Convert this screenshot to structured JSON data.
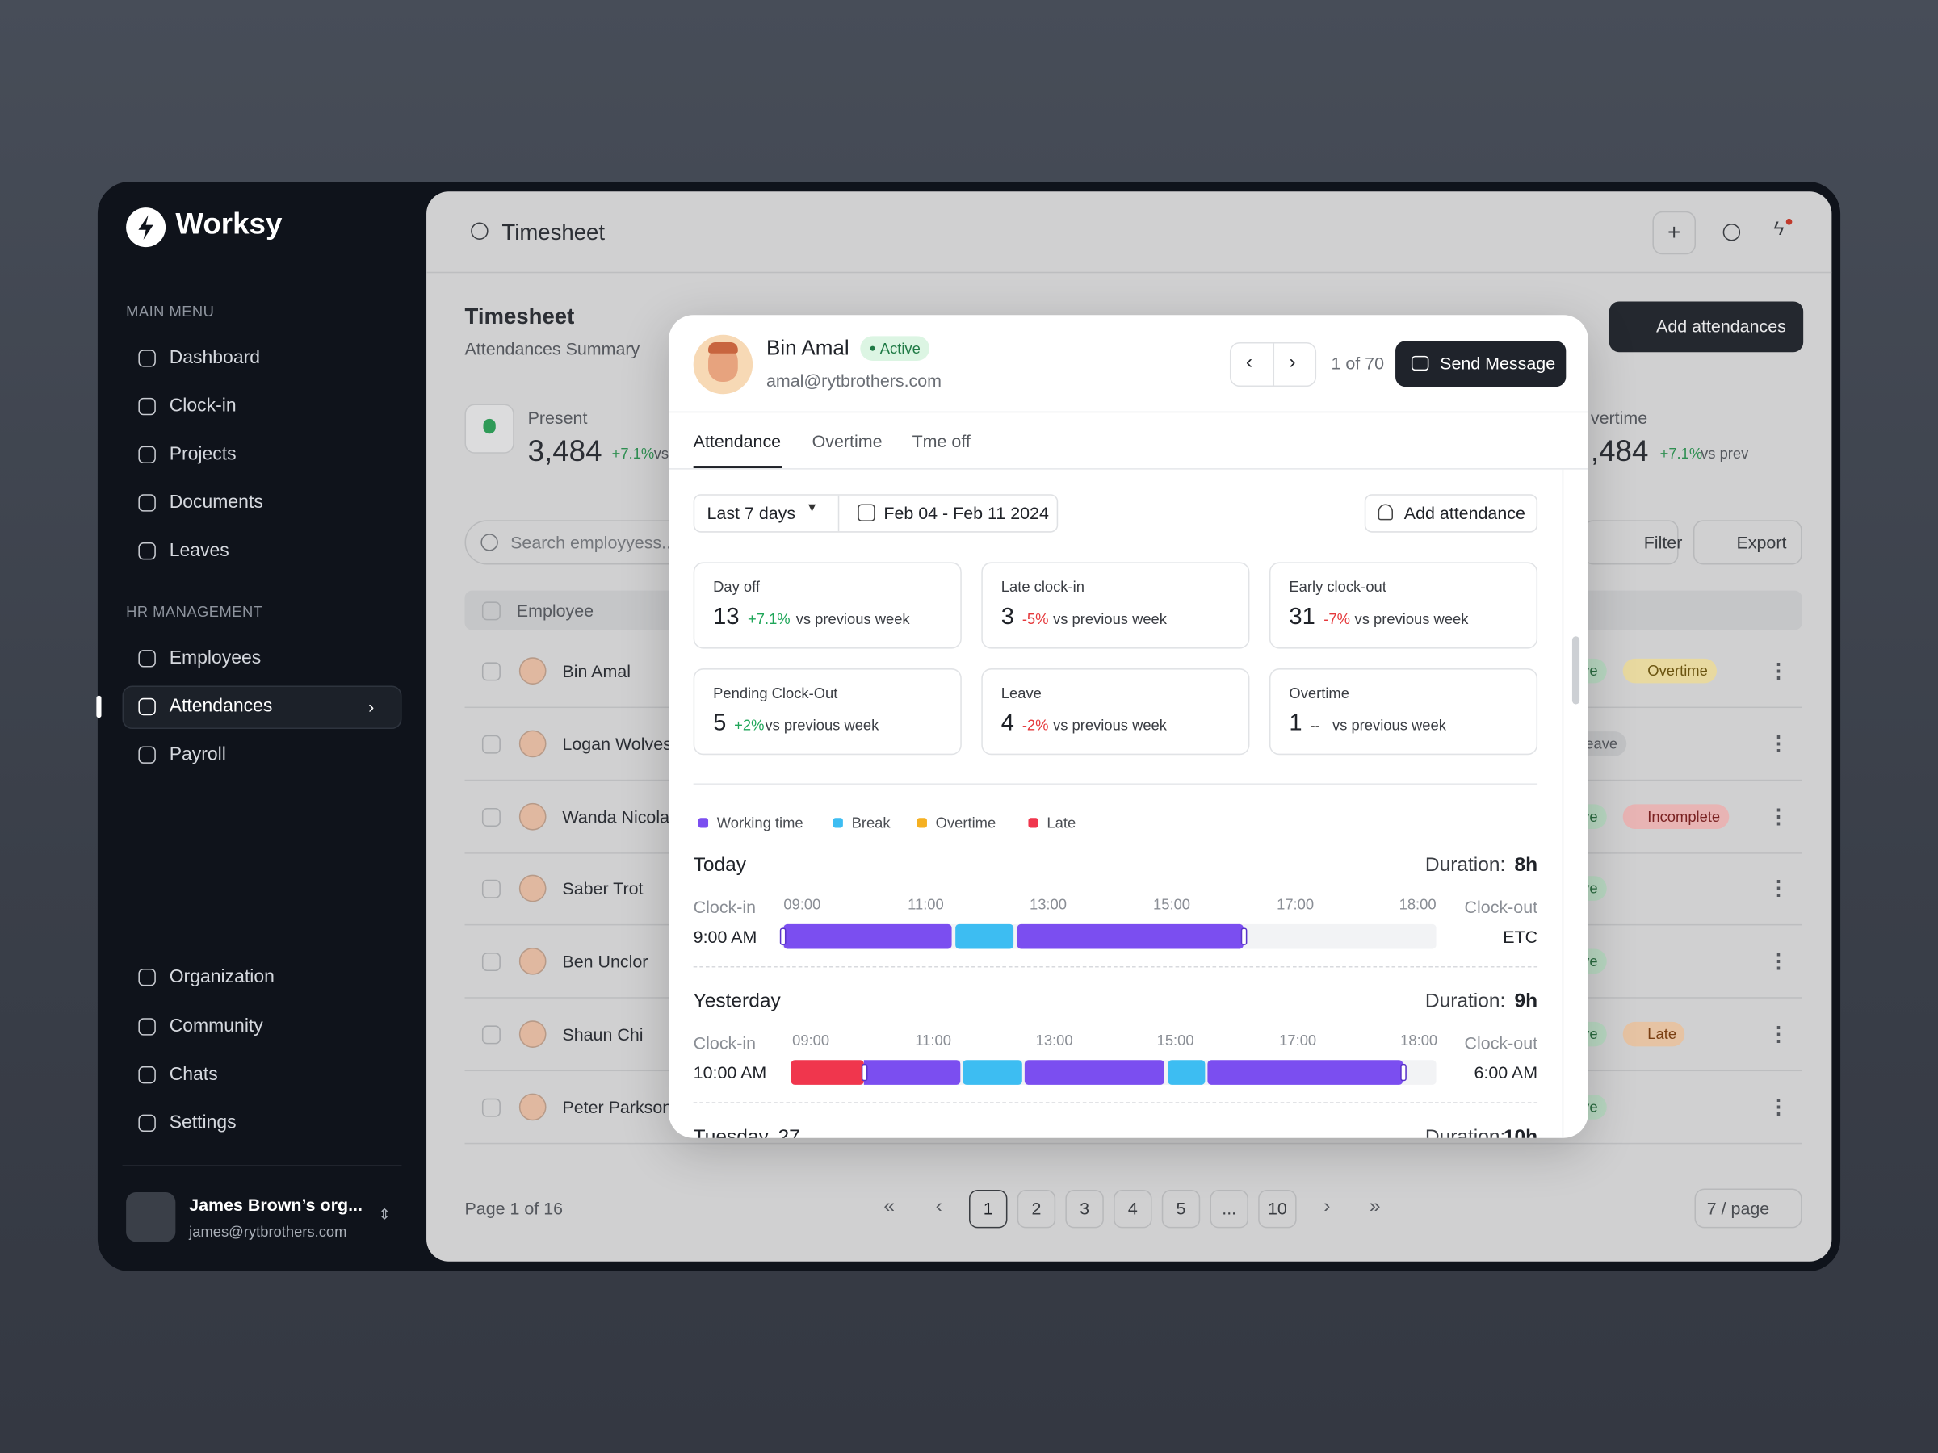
{
  "sidebar": {
    "brand": "Worksy",
    "main_menu_title": "MAIN MENU",
    "main_menu": [
      "Dashboard",
      "Clock-in",
      "Projects",
      "Documents",
      "Leaves"
    ],
    "hr_title": "HR MANAGEMENT",
    "hr_menu": [
      "Employees",
      "Attendances",
      "Payroll"
    ],
    "bottom_menu": [
      "Organization",
      "Community",
      "Chats",
      "Settings"
    ],
    "user": {
      "name": "James Brown’s org...",
      "email": "james@rytbrothers.com"
    }
  },
  "header": {
    "title": "Timesheet"
  },
  "content": {
    "title": "Timesheet",
    "subtitle": "Attendances Summary",
    "add_button": "Add attendances",
    "stats": [
      {
        "label": "Present",
        "value": "3,484",
        "change": "+7.1%",
        "note": "vs"
      },
      {
        "label": "vertime",
        "value": ",484",
        "change": "+7.1%",
        "note": "vs prev"
      }
    ],
    "search_placeholder": "Search employyess...",
    "filter": "Filter",
    "export": "Export",
    "table": {
      "column": "Employee",
      "rows": [
        {
          "name": "Bin Amal",
          "status": "ve",
          "tag": "Overtime"
        },
        {
          "name": "Logan Wolves",
          "status": "leave"
        },
        {
          "name": "Wanda Nicolas",
          "status": "ve",
          "tag": "Incomplete"
        },
        {
          "name": "Saber Trot",
          "status": "ve"
        },
        {
          "name": "Ben Unclor",
          "status": "ve"
        },
        {
          "name": "Shaun Chi",
          "status": "ve",
          "tag": "Late"
        },
        {
          "name": "Peter Parkson",
          "status": "ve"
        }
      ]
    },
    "pagination": {
      "summary": "Page 1 of 16",
      "pages": [
        "1",
        "2",
        "3",
        "4",
        "5",
        "...",
        "10"
      ],
      "per_page": "7 / page"
    }
  },
  "modal": {
    "name": "Bin Amal",
    "status": "Active",
    "email": "amal@rytbrothers.com",
    "counter": "1 of 70",
    "send_button": "Send Message",
    "tabs": [
      "Attendance",
      "Overtime",
      "Tme off"
    ],
    "range": "Last 7 days",
    "dates": "Feb 04 - Feb 11 2024",
    "add_button": "Add attendance",
    "cards": [
      {
        "label": "Day off",
        "value": 13,
        "change": "+7.1%",
        "note": "vs previous week"
      },
      {
        "label": "Late clock-in",
        "value": 3,
        "change": "-5%",
        "note": "vs previous week"
      },
      {
        "label": "Early clock-out",
        "value": 31,
        "change": "-7%",
        "note": "vs previous week"
      },
      {
        "label": "Pending Clock-Out",
        "value": 5,
        "change": "+2%",
        "note": "vs previous week"
      },
      {
        "label": "Leave",
        "value": 4,
        "change": "-2%",
        "note": "vs previous week"
      },
      {
        "label": "Overtime",
        "value": 1,
        "change": "--",
        "note": "vs previous week"
      }
    ],
    "legend": [
      "Working time",
      "Break",
      "Overtime",
      "Late"
    ],
    "days": [
      {
        "title": "Today",
        "duration_label": "Duration:",
        "duration": "8h",
        "clock_in_label": "Clock-in",
        "clock_in": "9:00 AM",
        "clock_out_label": "Clock-out",
        "clock_out": "ETC",
        "ticks": [
          "09:00",
          "11:00",
          "13:00",
          "15:00",
          "17:00",
          "18:00"
        ]
      },
      {
        "title": "Yesterday",
        "duration_label": "Duration:",
        "duration": "9h",
        "clock_in_label": "Clock-in",
        "clock_in": "10:00 AM",
        "clock_out_label": "Clock-out",
        "clock_out": "6:00 AM",
        "ticks": [
          "09:00",
          "11:00",
          "13:00",
          "15:00",
          "17:00",
          "18:00"
        ]
      },
      {
        "title": "Tuesday, 27",
        "duration_label": "Duration:",
        "duration": "10h"
      }
    ]
  }
}
